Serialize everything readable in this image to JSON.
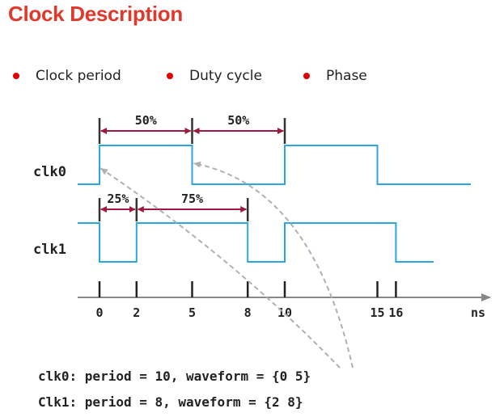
{
  "title": "Clock Description",
  "bullets": [
    "Clock period",
    "Duty cycle",
    "Phase"
  ],
  "signals": [
    {
      "name": "clk0",
      "edges": [
        0,
        5,
        10,
        15
      ],
      "start_low": true
    },
    {
      "name": "clk1",
      "edges": [
        0,
        2,
        8,
        10,
        16
      ],
      "start_low": false
    }
  ],
  "time_axis": {
    "ticks": [
      "0",
      "2",
      "5",
      "8",
      "10",
      "15",
      "16"
    ],
    "unit": "ns"
  },
  "annotations": [
    {
      "label": "50%",
      "from": 0,
      "to": 5,
      "signal": "clk0"
    },
    {
      "label": "50%",
      "from": 5,
      "to": 10,
      "signal": "clk0"
    },
    {
      "label": "25%",
      "from": 0,
      "to": 2,
      "signal": "clk1"
    },
    {
      "label": "75%",
      "from": 2,
      "to": 8,
      "signal": "clk1"
    }
  ],
  "code_lines": [
    "clk0: period = 10, waveform = {0 5}",
    "Clk1: period = 8, waveform = {2 8}"
  ],
  "colors": {
    "title": "#e0382b",
    "bullet": "#e00000",
    "wave": "#29a8e0",
    "arrow": "#a01840",
    "callout": "#b0b0b0",
    "axis": "#888888"
  }
}
